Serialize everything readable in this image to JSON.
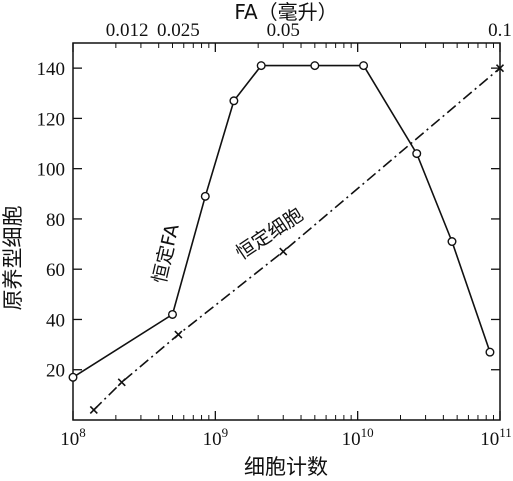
{
  "chart_data": {
    "type": "line",
    "x_scale": "log",
    "xlabel": "细胞计数",
    "ylabel": "原养型细胞",
    "top_axis_label": "FA（毫升）",
    "x_range": [
      100000000,
      100000000000
    ],
    "ylim": [
      0,
      150
    ],
    "x_ticks": [
      {
        "base": "10",
        "exp": "8",
        "value": 100000000
      },
      {
        "base": "10",
        "exp": "9",
        "value": 1000000000
      },
      {
        "base": "10",
        "exp": "10",
        "value": 10000000000
      },
      {
        "base": "10",
        "exp": "11",
        "value": 100000000000
      }
    ],
    "y_ticks": [
      "20",
      "40",
      "60",
      "80",
      "100",
      "120",
      "140"
    ],
    "top_ticks": [
      {
        "label": "0.012",
        "x": 240000000
      },
      {
        "label": "0.025",
        "x": 550000000
      },
      {
        "label": "0.05",
        "x": 3000000000
      },
      {
        "label": "0.1",
        "x": 100000000000
      }
    ],
    "series": [
      {
        "name": "恒定FA",
        "marker": "circle",
        "line_style": "solid",
        "points": [
          [
            100000000,
            17
          ],
          [
            500000000,
            42
          ],
          [
            850000000,
            89
          ],
          [
            1350000000,
            127
          ],
          [
            2100000000,
            141
          ],
          [
            5000000000,
            141
          ],
          [
            11000000000,
            141
          ],
          [
            26000000000,
            106
          ],
          [
            46000000000,
            71
          ],
          [
            85000000000,
            27
          ]
        ]
      },
      {
        "name": "恒定细胞",
        "marker": "x",
        "line_style": "dashdot",
        "points": [
          [
            140000000,
            4
          ],
          [
            220000000,
            15
          ],
          [
            550000000,
            34
          ],
          [
            3000000000,
            67
          ],
          [
            100000000000,
            140
          ]
        ]
      }
    ],
    "grid": false,
    "legend": "none (series labeled inline)"
  }
}
